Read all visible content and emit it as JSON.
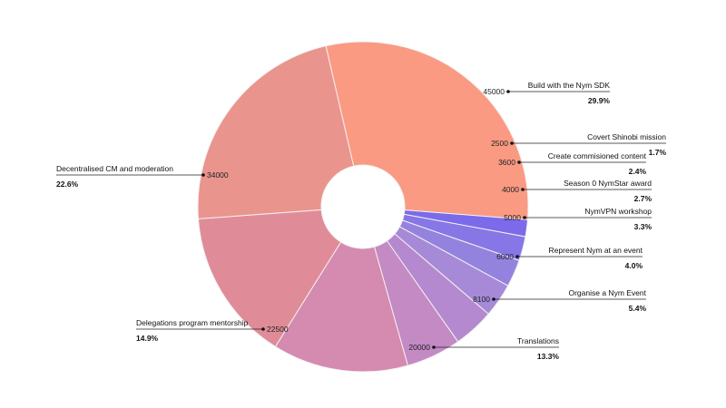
{
  "chart_data": {
    "type": "pie",
    "style": "donut",
    "title": "",
    "slices": [
      {
        "label": "Build with the Nym SDK",
        "value": 45000,
        "value_label": "45000",
        "percent": "29.9%",
        "color": "#fa9a82"
      },
      {
        "label": "Covert Shinobi mission",
        "value": 2500,
        "value_label": "2500",
        "percent": "1.7%",
        "color": "#7b6bea"
      },
      {
        "label": "Create commisioned content",
        "value": 3600,
        "value_label": "3600",
        "percent": "2.4%",
        "color": "#8676e6"
      },
      {
        "label": "Season 0 NymStar award",
        "value": 4000,
        "value_label": "4000",
        "percent": "2.7%",
        "color": "#9482df"
      },
      {
        "label": "NymVPN workshop",
        "value": 5000,
        "value_label": "5000",
        "percent": "3.3%",
        "color": "#a68ad8"
      },
      {
        "label": "Represent Nym at an event",
        "value": 6000,
        "value_label": "6000",
        "percent": "4.0%",
        "color": "#b489cf"
      },
      {
        "label": "Organise a Nym Event",
        "value": 8100,
        "value_label": "8100",
        "percent": "5.4%",
        "color": "#c48ac4"
      },
      {
        "label": "Translations",
        "value": 20000,
        "value_label": "20000",
        "percent": "13.3%",
        "color": "#d58ab0"
      },
      {
        "label": "Delegations program mentorship",
        "value": 22500,
        "value_label": "22500",
        "percent": "14.9%",
        "color": "#e08c98"
      },
      {
        "label": "Decentralised CM and moderation",
        "value": 34000,
        "value_label": "34000",
        "percent": "22.6%",
        "color": "#ea948e"
      }
    ]
  }
}
